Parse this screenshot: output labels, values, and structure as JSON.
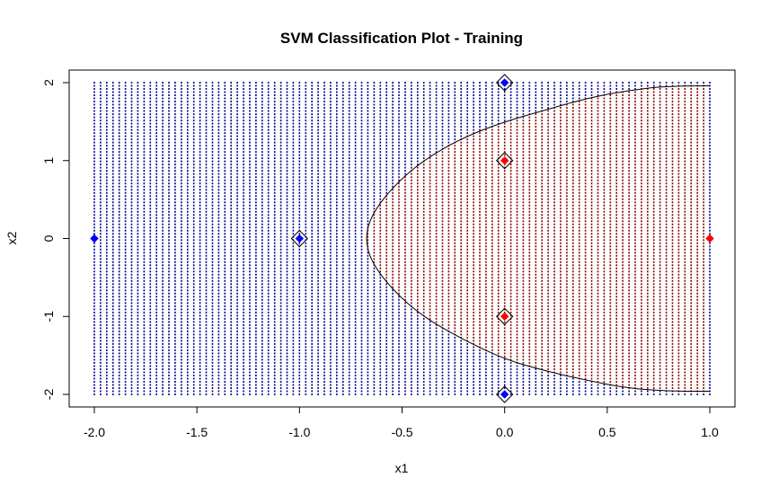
{
  "chart_data": {
    "type": "scatter",
    "title": "SVM Classification Plot - Training",
    "xlabel": "x1",
    "ylabel": "x2",
    "xlim": [
      -2.0,
      1.0
    ],
    "ylim": [
      -2,
      2
    ],
    "x_ticks": [
      "-2.0",
      "-1.5",
      "-1.0",
      "-0.5",
      "0.0",
      "0.5",
      "1.0"
    ],
    "y_ticks": [
      "-2",
      "-1",
      "0",
      "1",
      "2"
    ],
    "grid": false,
    "legend": "none",
    "colors": {
      "class_blue": "#0000ff",
      "class_red": "#ff0000",
      "grid_blue": "#00008b",
      "grid_red": "#8b0000"
    },
    "decision_boundary": {
      "description_free": true,
      "points": [
        [
          1.0,
          1.96
        ],
        [
          0.8,
          1.96
        ],
        [
          0.6,
          1.9
        ],
        [
          0.4,
          1.8
        ],
        [
          0.2,
          1.65
        ],
        [
          0.0,
          1.5
        ],
        [
          -0.2,
          1.3
        ],
        [
          -0.4,
          1.0
        ],
        [
          -0.55,
          0.65
        ],
        [
          -0.65,
          0.3
        ],
        [
          -0.68,
          0.0
        ],
        [
          -0.65,
          -0.3
        ],
        [
          -0.55,
          -0.65
        ],
        [
          -0.4,
          -1.0
        ],
        [
          -0.2,
          -1.3
        ],
        [
          0.0,
          -1.55
        ],
        [
          0.2,
          -1.7
        ],
        [
          0.4,
          -1.82
        ],
        [
          0.6,
          -1.92
        ],
        [
          0.8,
          -1.96
        ],
        [
          1.0,
          -1.96
        ]
      ]
    },
    "points": [
      {
        "x": -2,
        "y": 0,
        "class": "blue",
        "support_vector": false
      },
      {
        "x": -1,
        "y": 0,
        "class": "blue",
        "support_vector": true
      },
      {
        "x": 0,
        "y": 2,
        "class": "blue",
        "support_vector": true
      },
      {
        "x": 0,
        "y": -2,
        "class": "blue",
        "support_vector": true
      },
      {
        "x": 0,
        "y": 1,
        "class": "red",
        "support_vector": true
      },
      {
        "x": 0,
        "y": -1,
        "class": "red",
        "support_vector": true
      },
      {
        "x": 1,
        "y": 0,
        "class": "red",
        "support_vector": false
      }
    ]
  }
}
